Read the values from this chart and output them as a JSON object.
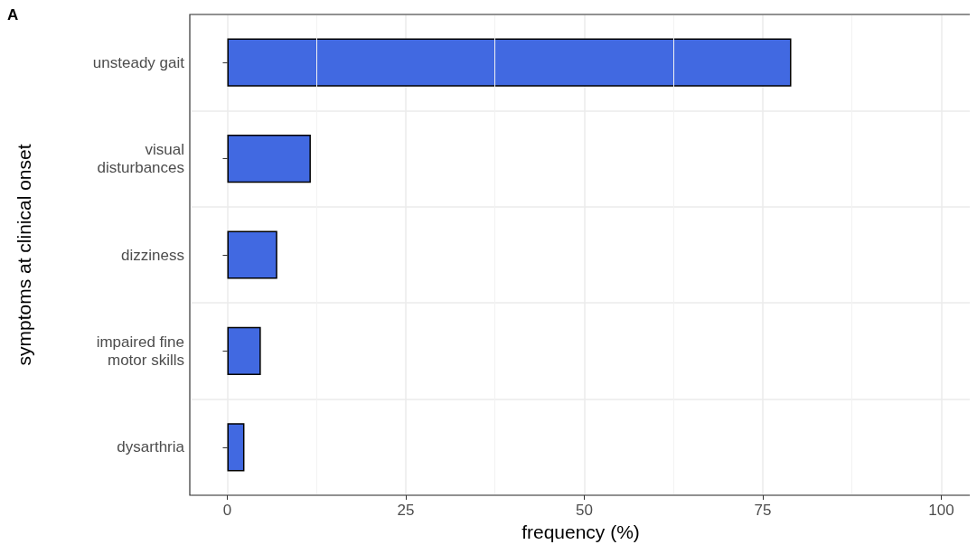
{
  "chart_data": {
    "type": "bar",
    "orientation": "horizontal",
    "annotations": [
      "A"
    ],
    "xlabel": "frequency (%)",
    "ylabel": "symptoms at clinical onset",
    "categories": [
      "unsteady gait",
      "visual\ndisturbances",
      "dizziness",
      "impaired fine\nmotor skills",
      "dysarthria"
    ],
    "values": [
      79,
      11.7,
      7,
      4.7,
      2.4
    ],
    "color": "#4169e1",
    "xlim": [
      -5,
      104
    ],
    "xticks": [
      0,
      25,
      50,
      75,
      100
    ],
    "grid": true
  }
}
